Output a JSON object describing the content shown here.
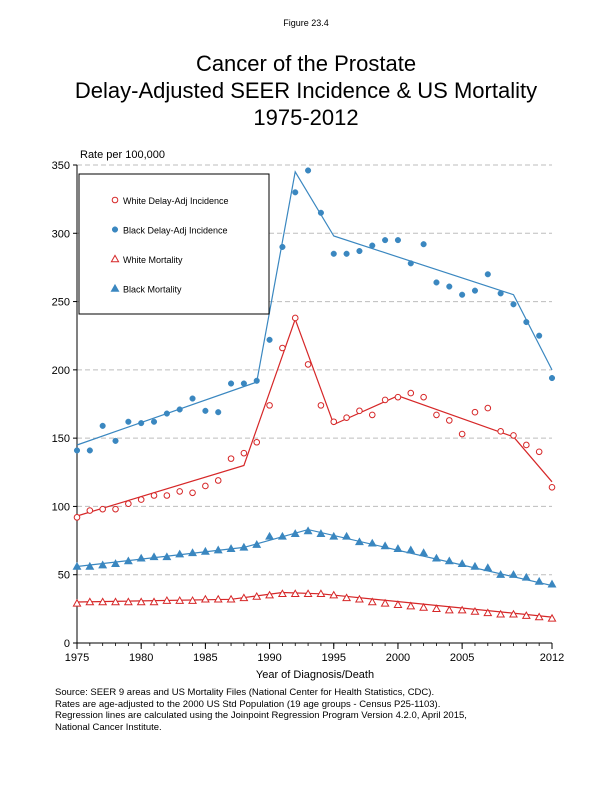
{
  "figure_label": "Figure 23.4",
  "title_lines": [
    "Cancer of the Prostate",
    "Delay-Adjusted SEER Incidence & US Mortality",
    "1975-2012"
  ],
  "source_lines": [
    "Source: SEER 9 areas and US Mortality Files (National Center for Health Statistics, CDC).",
    "Rates are age-adjusted to the 2000 US Std Population (19 age groups - Census P25-1103).",
    "Regression lines are calculated using the Joinpoint Regression Program Version 4.2.0, April 2015,",
    "National Cancer Institute."
  ],
  "colors": {
    "white": "#d62728",
    "black": "#3a87c0",
    "grid": "#bdbdbd"
  },
  "chart_data": {
    "type": "scatter",
    "ylabel": "Rate per 100,000",
    "xlabel": "Year of Diagnosis/Death",
    "xlim": [
      1975,
      2012
    ],
    "ylim": [
      0,
      350
    ],
    "x_ticks": [
      1975,
      1980,
      1985,
      1990,
      1995,
      2000,
      2005,
      2012
    ],
    "y_ticks": [
      0,
      50,
      100,
      150,
      200,
      250,
      300,
      350
    ],
    "grid": "horizontal dashed",
    "legend_position": "top-left",
    "x": [
      1975,
      1976,
      1977,
      1978,
      1979,
      1980,
      1981,
      1982,
      1983,
      1984,
      1985,
      1986,
      1987,
      1988,
      1989,
      1990,
      1991,
      1992,
      1993,
      1994,
      1995,
      1996,
      1997,
      1998,
      1999,
      2000,
      2001,
      2002,
      2003,
      2004,
      2005,
      2006,
      2007,
      2008,
      2009,
      2010,
      2011,
      2012
    ],
    "series": [
      {
        "name": "White Delay-Adj Incidence",
        "color": "#d62728",
        "marker": "open-circle",
        "values": [
          92,
          97,
          98,
          98,
          102,
          105,
          108,
          108,
          111,
          110,
          115,
          119,
          135,
          139,
          147,
          174,
          216,
          238,
          204,
          174,
          162,
          165,
          170,
          167,
          178,
          180,
          183,
          180,
          167,
          163,
          153,
          169,
          172,
          155,
          152,
          145,
          140,
          114
        ],
        "fit": [
          [
            1975,
            93
          ],
          [
            1988,
            130
          ],
          [
            1992,
            237
          ],
          [
            1995,
            160
          ],
          [
            2000,
            181
          ],
          [
            2009,
            151
          ],
          [
            2012,
            118
          ]
        ]
      },
      {
        "name": "Black Delay-Adj Incidence",
        "color": "#3a87c0",
        "marker": "filled-circle",
        "values": [
          141,
          141,
          159,
          148,
          162,
          161,
          162,
          168,
          171,
          179,
          170,
          169,
          190,
          190,
          192,
          222,
          290,
          330,
          346,
          315,
          285,
          285,
          287,
          291,
          295,
          295,
          278,
          292,
          264,
          261,
          255,
          258,
          270,
          256,
          248,
          235,
          225,
          194
        ],
        "fit": [
          [
            1975,
            145
          ],
          [
            1989,
            191
          ],
          [
            1992,
            345
          ],
          [
            1995,
            298
          ],
          [
            2009,
            255
          ],
          [
            2012,
            200
          ]
        ]
      },
      {
        "name": "White Mortality",
        "color": "#d62728",
        "marker": "open-triangle",
        "values": [
          29,
          30,
          30,
          30,
          30,
          30,
          30,
          31,
          31,
          31,
          32,
          32,
          32,
          33,
          34,
          35,
          36,
          36,
          36,
          36,
          35,
          33,
          32,
          30,
          29,
          28,
          27,
          26,
          25,
          24,
          24,
          23,
          22,
          21,
          21,
          20,
          19,
          18
        ],
        "fit": [
          [
            1975,
            30
          ],
          [
            1987,
            32
          ],
          [
            1991,
            37
          ],
          [
            1994,
            36
          ],
          [
            2012,
            19
          ]
        ]
      },
      {
        "name": "Black Mortality",
        "color": "#3a87c0",
        "marker": "filled-triangle",
        "values": [
          56,
          56,
          57,
          58,
          60,
          62,
          63,
          63,
          65,
          66,
          67,
          68,
          69,
          70,
          72,
          78,
          78,
          80,
          82,
          80,
          78,
          78,
          74,
          73,
          71,
          69,
          68,
          66,
          62,
          60,
          58,
          56,
          55,
          50,
          50,
          48,
          45,
          43
        ],
        "fit": [
          [
            1975,
            56
          ],
          [
            1988,
            70
          ],
          [
            1993,
            83
          ],
          [
            2012,
            42
          ]
        ]
      }
    ]
  }
}
